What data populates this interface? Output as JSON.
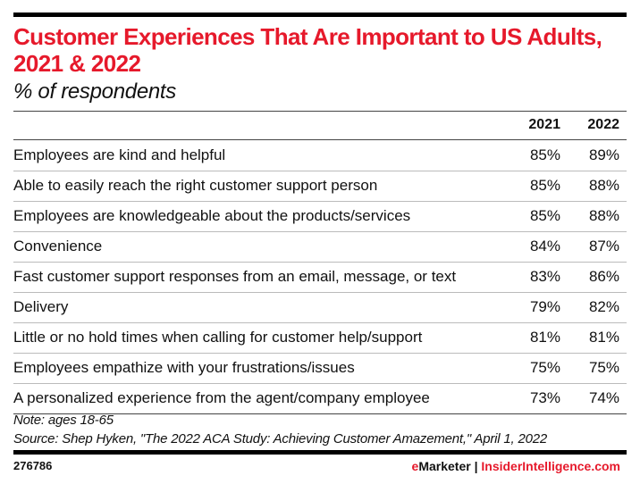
{
  "chart_data": {
    "type": "table",
    "title": "Customer Experiences That Are Important to US Adults, 2021 & 2022",
    "subtitle": "% of respondents",
    "columns": [
      "2021",
      "2022"
    ],
    "rows": [
      {
        "label": "Employees are kind and helpful",
        "values": [
          "85%",
          "89%"
        ]
      },
      {
        "label": "Able to easily reach the right customer support person",
        "values": [
          "85%",
          "88%"
        ]
      },
      {
        "label": "Employees are knowledgeable about the products/services",
        "values": [
          "85%",
          "88%"
        ]
      },
      {
        "label": "Convenience",
        "values": [
          "84%",
          "87%"
        ]
      },
      {
        "label": "Fast customer support responses from an email, message, or text",
        "values": [
          "83%",
          "86%"
        ]
      },
      {
        "label": "Delivery",
        "values": [
          "79%",
          "82%"
        ]
      },
      {
        "label": "Little or no hold times when calling for customer help/support",
        "values": [
          "81%",
          "81%"
        ]
      },
      {
        "label": "Employees empathize with your frustrations/issues",
        "values": [
          "75%",
          "75%"
        ]
      },
      {
        "label": "A personalized experience from the agent/company employee",
        "values": [
          "73%",
          "74%"
        ]
      }
    ],
    "note": "Note: ages 18-65",
    "source": "Source: Shep Hyken, \"The 2022 ACA Study: Achieving Customer Amazement,\" April 1, 2022"
  },
  "footer": {
    "chart_id": "276786",
    "brand_e": "e",
    "brand_rest": "Marketer",
    "separator": " | ",
    "site": "InsiderIntelligence.com"
  },
  "colors": {
    "accent": "#e6192b",
    "text": "#111111"
  }
}
